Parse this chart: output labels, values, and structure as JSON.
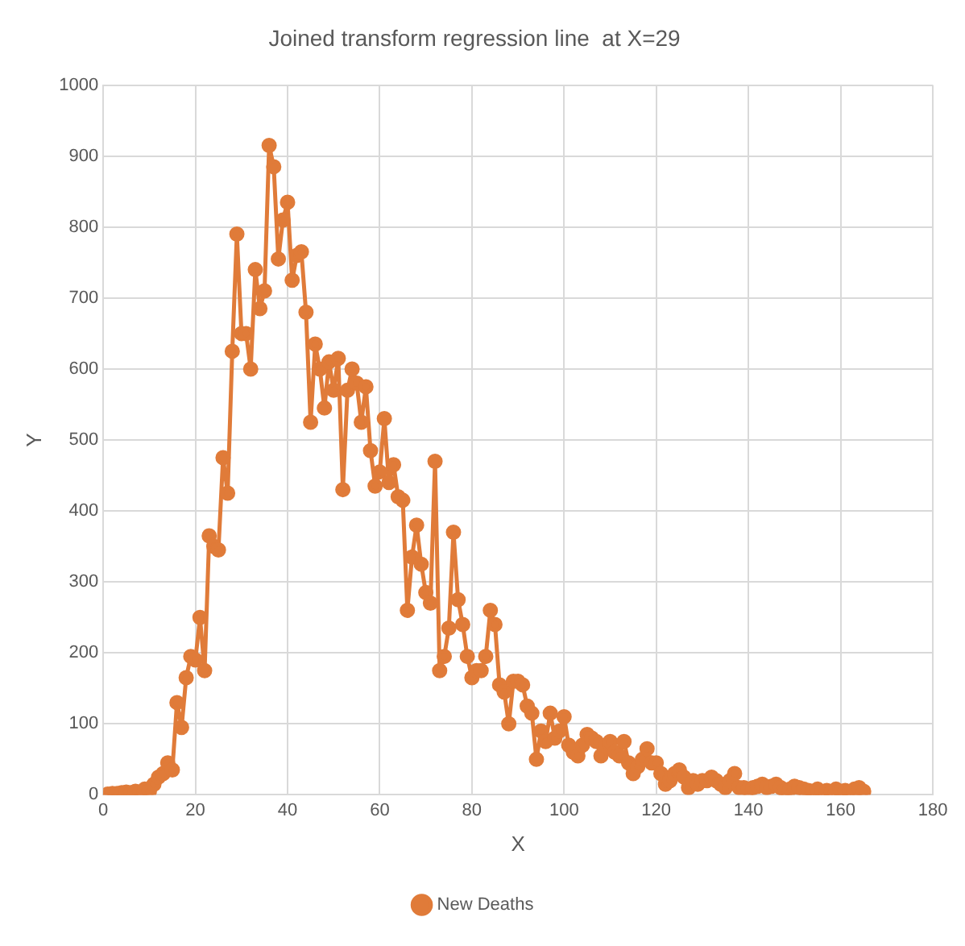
{
  "chart_data": {
    "type": "line",
    "title": "Joined transform regression line  at X=29",
    "xlabel": "X",
    "ylabel": "Y",
    "x": [
      1,
      2,
      3,
      4,
      5,
      6,
      7,
      8,
      9,
      10,
      11,
      12,
      13,
      14,
      15,
      16,
      17,
      18,
      19,
      20,
      21,
      22,
      23,
      24,
      25,
      26,
      27,
      28,
      29,
      30,
      31,
      32,
      33,
      34,
      35,
      36,
      37,
      38,
      39,
      40,
      41,
      42,
      43,
      44,
      45,
      46,
      47,
      48,
      49,
      50,
      51,
      52,
      53,
      54,
      55,
      56,
      57,
      58,
      59,
      60,
      61,
      62,
      63,
      64,
      65,
      66,
      67,
      68,
      69,
      70,
      71,
      72,
      73,
      74,
      75,
      76,
      77,
      78,
      79,
      80,
      81,
      82,
      83,
      84,
      85,
      86,
      87,
      88,
      89,
      90,
      91,
      92,
      93,
      94,
      95,
      96,
      97,
      98,
      99,
      100,
      101,
      102,
      103,
      104,
      105,
      106,
      107,
      108,
      109,
      110,
      111,
      112,
      113,
      114,
      115,
      116,
      117,
      118,
      119,
      120,
      121,
      122,
      123,
      124,
      125,
      126,
      127,
      128,
      129,
      130,
      131,
      132,
      133,
      134,
      135,
      136,
      137,
      138,
      139,
      140,
      141,
      142,
      143,
      144,
      145,
      146,
      147,
      148,
      149,
      150,
      151,
      152,
      153,
      154,
      155,
      156,
      157,
      158,
      159,
      160,
      161,
      162,
      163,
      164,
      165
    ],
    "series": [
      {
        "name": "New Deaths",
        "color": "#e07b39",
        "values": [
          1,
          2,
          2,
          3,
          4,
          3,
          5,
          4,
          8,
          5,
          15,
          25,
          30,
          45,
          35,
          130,
          95,
          165,
          195,
          190,
          250,
          175,
          365,
          350,
          345,
          475,
          425,
          625,
          790,
          650,
          650,
          600,
          740,
          685,
          710,
          915,
          885,
          755,
          810,
          835,
          725,
          760,
          765,
          680,
          525,
          635,
          600,
          545,
          610,
          570,
          615,
          430,
          570,
          600,
          580,
          525,
          575,
          485,
          435,
          455,
          530,
          440,
          465,
          420,
          415,
          260,
          335,
          380,
          325,
          285,
          270,
          470,
          175,
          195,
          235,
          370,
          275,
          240,
          195,
          165,
          175,
          175,
          195,
          260,
          240,
          155,
          145,
          100,
          160,
          160,
          155,
          125,
          115,
          50,
          90,
          75,
          115,
          80,
          90,
          110,
          70,
          60,
          55,
          70,
          85,
          80,
          75,
          55,
          70,
          75,
          60,
          55,
          75,
          45,
          30,
          40,
          50,
          65,
          45,
          45,
          30,
          15,
          20,
          30,
          35,
          25,
          10,
          20,
          15,
          20,
          20,
          25,
          20,
          15,
          10,
          20,
          30,
          10,
          10,
          8,
          10,
          12,
          15,
          10,
          12,
          15,
          10,
          5,
          8,
          12,
          10,
          8,
          6,
          5,
          8,
          4,
          6,
          3,
          8,
          5,
          6,
          4,
          8,
          10,
          5
        ]
      }
    ],
    "xlim": [
      0,
      180
    ],
    "xticks": [
      0,
      20,
      40,
      60,
      80,
      100,
      120,
      140,
      160,
      180
    ],
    "ylim": [
      0,
      1000
    ],
    "yticks": [
      0,
      100,
      200,
      300,
      400,
      500,
      600,
      700,
      800,
      900,
      1000
    ],
    "grid": true,
    "legend": "bottom",
    "marker": "circle",
    "line_style": "solid"
  }
}
